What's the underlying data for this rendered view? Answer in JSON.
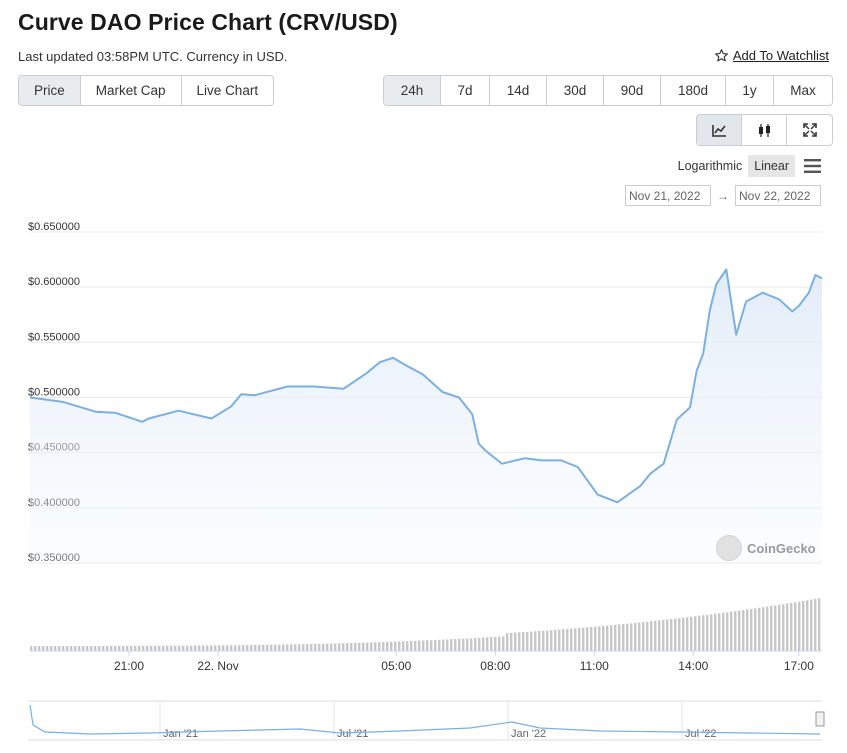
{
  "header": {
    "title": "Curve DAO Price Chart (CRV/USD)",
    "updated": "Last updated 03:58PM UTC. Currency in USD.",
    "watchlist": "Add To Watchlist"
  },
  "chart_type_tabs": [
    "Price",
    "Market Cap",
    "Live Chart"
  ],
  "range_tabs": [
    "24h",
    "7d",
    "14d",
    "30d",
    "90d",
    "180d",
    "1y",
    "Max"
  ],
  "view_icons": [
    "line-chart-icon",
    "candlestick-icon",
    "fullscreen-icon"
  ],
  "scale": {
    "log_label": "Logarithmic",
    "linear_label": "Linear",
    "active": "Linear"
  },
  "date_range": {
    "from": "Nov 21, 2022",
    "to": "Nov 22, 2022",
    "arrow": "→"
  },
  "watermark": "CoinGecko",
  "colors": {
    "line": "#7cb0e0",
    "fill_top": "#dde9f7",
    "grid": "#e9e9e9",
    "volume": "#c7c7c7",
    "active_tab": "#e9ecef"
  },
  "chart_data": {
    "type": "area",
    "ylim": [
      0.35,
      0.65
    ],
    "y_ticks": [
      "$0.650000",
      "$0.600000",
      "$0.550000",
      "$0.500000",
      "$0.450000",
      "$0.400000",
      "$0.350000"
    ],
    "x_ticks": [
      "21:00",
      "22. Nov",
      "05:00",
      "08:00",
      "11:00",
      "14:00",
      "17:00"
    ],
    "x_tick_hours": [
      3.0,
      5.7,
      11.1,
      14.1,
      17.1,
      20.1,
      23.3
    ],
    "navigator_ticks": [
      "Jan '21",
      "Jul '21",
      "Jan '22",
      "Jul '22"
    ],
    "series": [
      {
        "x": [
          0.0,
          1.0,
          2.0,
          2.6,
          3.4,
          3.6,
          4.5,
          5.5,
          6.1,
          6.4,
          6.8,
          7.8,
          8.6,
          9.5,
          10.2,
          10.6,
          11.0,
          11.4,
          11.9,
          12.5,
          13.0,
          13.4,
          13.6,
          13.8,
          14.3,
          15.0,
          15.5,
          16.1,
          16.6,
          17.2,
          17.8,
          18.5,
          18.8,
          19.2,
          19.6,
          20.0,
          20.2,
          20.4,
          20.6,
          20.8,
          21.1,
          21.4,
          21.7,
          22.2,
          22.7,
          23.1,
          23.3,
          23.6,
          23.8,
          24.0
        ],
        "y": [
          0.5,
          0.496,
          0.487,
          0.486,
          0.478,
          0.481,
          0.488,
          0.481,
          0.492,
          0.503,
          0.502,
          0.51,
          0.51,
          0.508,
          0.522,
          0.532,
          0.536,
          0.529,
          0.521,
          0.505,
          0.5,
          0.485,
          0.458,
          0.452,
          0.44,
          0.445,
          0.443,
          0.443,
          0.437,
          0.412,
          0.405,
          0.42,
          0.431,
          0.44,
          0.48,
          0.491,
          0.524,
          0.54,
          0.579,
          0.603,
          0.616,
          0.557,
          0.587,
          0.595,
          0.589,
          0.578,
          0.583,
          0.595,
          0.611,
          0.608
        ]
      }
    ]
  }
}
